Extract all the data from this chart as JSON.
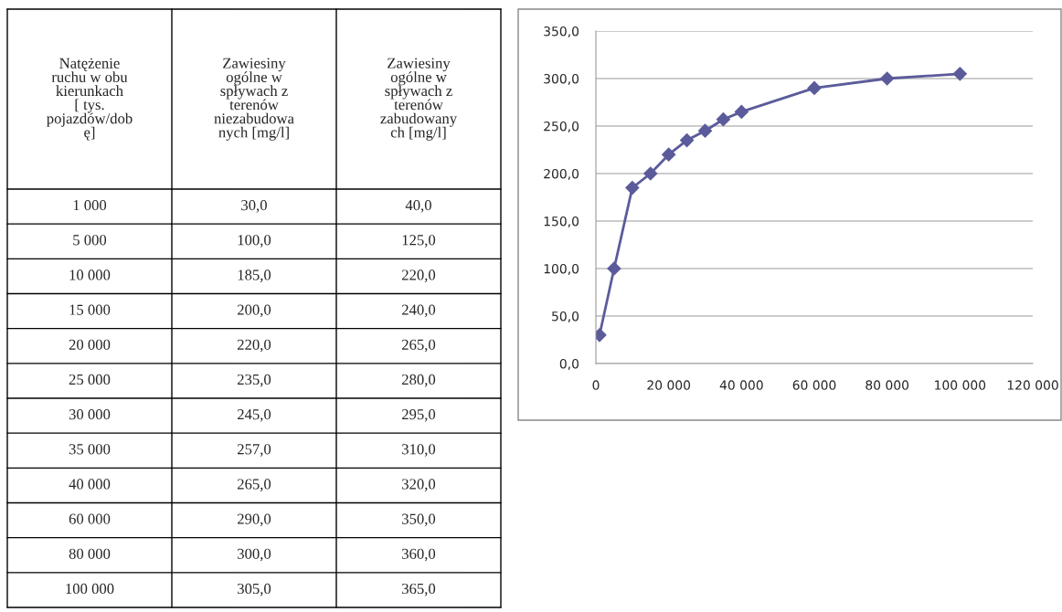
{
  "chart_data": [
    {
      "type": "other",
      "annotations": [
        "Natężenie\nruchu w obu\nkierunkach\n[ tys.\npojazdów/dob\nę]",
        "Zawiesiny\nogólne w\nspływach z\nterenów\nniezabudowa\nnych [mg/l]",
        "Zawiesiny\nogólne w\nspływach z\nterenów\nzabudowany\nch [mg/l]",
        "1 000",
        "30,0",
        "40,0",
        "5 000",
        "100,0",
        "125,0",
        "10 000",
        "185,0",
        "220,0",
        "15 000",
        "200,0",
        "240,0",
        "20 000",
        "220,0",
        "265,0",
        "25 000",
        "235,0",
        "280,0",
        "30 000",
        "245,0",
        "295,0",
        "35 000",
        "257,0",
        "310,0",
        "40 000",
        "265,0",
        "320,0",
        "60 000",
        "290,0",
        "350,0",
        "80 000",
        "300,0",
        "360,0",
        "100 000",
        "305,0",
        "365,0"
      ]
    },
    {
      "type": "line",
      "x": [
        1000,
        5000,
        10000,
        15000,
        20000,
        25000,
        30000,
        35000,
        40000,
        60000,
        80000,
        100000
      ],
      "series": [
        {
          "color": "#5b5b9b",
          "values": [
            30,
            100,
            185,
            200,
            220,
            235,
            245,
            257,
            265,
            290,
            300,
            305
          ]
        }
      ],
      "xlim": [
        0,
        120000
      ],
      "ylim": [
        0,
        350
      ],
      "xticks": [
        0,
        {
          "value": 20000,
          "label": "20 000"
        },
        {
          "value": 40000,
          "label": "40 000"
        },
        {
          "value": 60000,
          "label": "60 000"
        },
        {
          "value": 80000,
          "label": "80 000"
        },
        {
          "value": 100000,
          "label": "100 000"
        },
        {
          "value": 120000,
          "label": "120 000"
        }
      ],
      "yticks": [
        {
          "value": 0,
          "label": "0,0"
        },
        {
          "value": 50,
          "label": "50,0"
        },
        {
          "value": 100,
          "label": "100,0"
        },
        {
          "value": 150,
          "label": "150,0"
        },
        {
          "value": 200,
          "label": "200,0"
        },
        {
          "value": 250,
          "label": "250,0"
        },
        {
          "value": 300,
          "label": "300,0"
        },
        {
          "value": 350,
          "label": "350,0"
        }
      ],
      "grid": "y",
      "marker": "diamond",
      "line_style": "solid"
    }
  ]
}
